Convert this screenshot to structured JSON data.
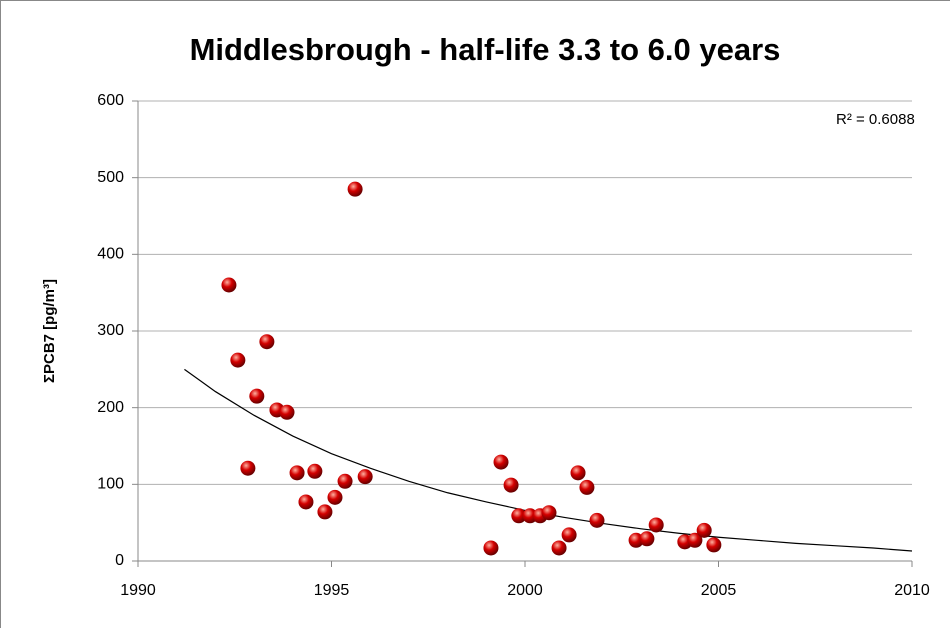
{
  "chart_data": {
    "type": "scatter",
    "title": "Middlesbrough - half-life 3.3 to 6.0 years",
    "y_label": "ΣPCB7 [pg/m³]",
    "annotation": "R² = 0.6088",
    "xlim": [
      1990,
      2010
    ],
    "xticks": [
      1990,
      1995,
      2000,
      2005,
      2010
    ],
    "ylim": [
      0,
      600
    ],
    "yticks": [
      0,
      100,
      200,
      300,
      400,
      500,
      600
    ],
    "grid": true,
    "series": [
      {
        "color": "#d40000",
        "x": [
          1992.35,
          1992.58,
          1992.84,
          1993.07,
          1993.33,
          1993.59,
          1993.85,
          1994.11,
          1994.34,
          1994.57,
          1994.83,
          1995.09,
          1995.35,
          1995.61,
          1995.87,
          1999.12,
          1999.38,
          1999.64,
          1999.84,
          2000.13,
          2000.39,
          2000.62,
          2000.88,
          2001.14,
          2001.37,
          2001.6,
          2001.86,
          2002.87,
          2003.15,
          2003.39,
          2004.13,
          2004.39,
          2004.63,
          2004.88
        ],
        "values": [
          360,
          262,
          121,
          215,
          286,
          197,
          194,
          115,
          77,
          117,
          64,
          83,
          104,
          485,
          110,
          17,
          129,
          99,
          59,
          59,
          59,
          63,
          17,
          34,
          115,
          96,
          53,
          27,
          29,
          47,
          25,
          27,
          40,
          21
        ]
      }
    ],
    "trendline": {
      "color": "#000000",
      "x": [
        1991.2,
        1992,
        1993,
        1994,
        1995,
        1996,
        1997,
        1998,
        1999,
        2000,
        2001,
        2002,
        2003,
        2004,
        2005,
        2006,
        2007,
        2008,
        2009,
        2010
      ],
      "values": [
        250,
        221,
        190,
        163,
        140,
        121,
        104,
        89,
        77,
        66,
        57,
        49,
        42,
        36,
        31,
        27,
        23,
        20,
        17,
        13
      ]
    }
  }
}
